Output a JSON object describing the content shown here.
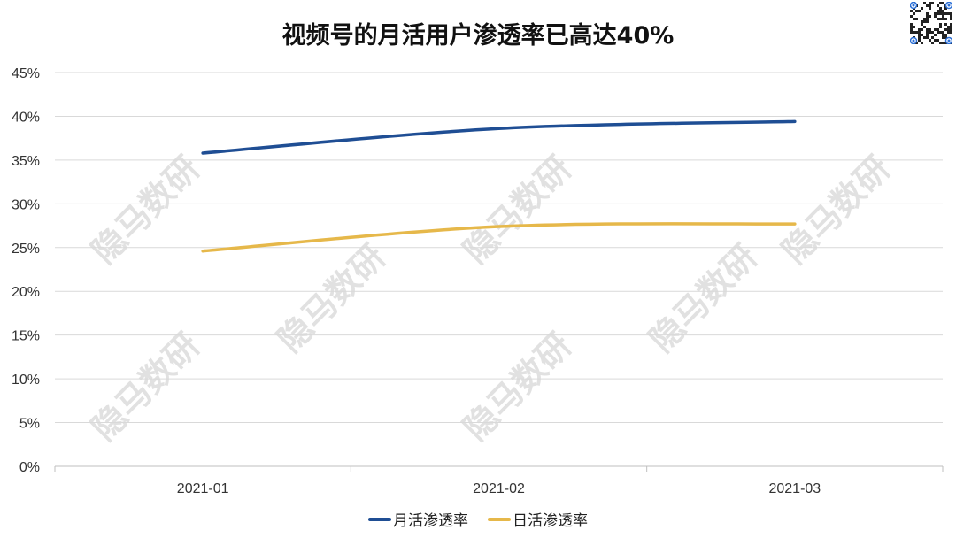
{
  "watermark": "隐马数研",
  "colors": {
    "monthly": "#1f4e94",
    "daily": "#e6b84a",
    "grid": "#d9d9d9"
  },
  "chart_data": {
    "type": "line",
    "title": "视频号的月活用户渗透率已高达40%",
    "categories": [
      "2021-01",
      "2021-02",
      "2021-03"
    ],
    "series": [
      {
        "name": "月活渗透率",
        "values": [
          35.8,
          38.6,
          39.4
        ]
      },
      {
        "name": "日活渗透率",
        "values": [
          24.6,
          27.4,
          27.7
        ]
      }
    ],
    "ylim": [
      0,
      45
    ],
    "yticks": [
      "0%",
      "5%",
      "10%",
      "15%",
      "20%",
      "25%",
      "30%",
      "35%",
      "40%",
      "45%"
    ],
    "grid": true,
    "legend": "bottom",
    "xlabel": "",
    "ylabel": ""
  }
}
